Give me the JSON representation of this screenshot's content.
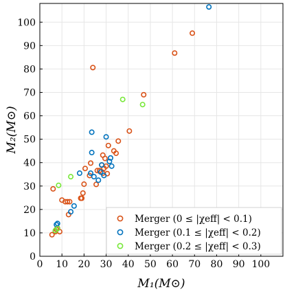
{
  "chart_data": {
    "type": "scatter",
    "xlabel": "M₁(M⊙)",
    "ylabel": "M₂(M⊙)",
    "xlim": [
      0,
      110
    ],
    "ylim": [
      0,
      108
    ],
    "x_ticks": [
      0,
      10,
      20,
      30,
      40,
      50,
      60,
      70,
      80,
      90,
      100
    ],
    "y_ticks": [
      0,
      10,
      20,
      30,
      40,
      50,
      60,
      70,
      80,
      90,
      100
    ],
    "grid": true,
    "legend_position": "bottom-right",
    "series": [
      {
        "name": "Merger (0 ≤ |χeff| < 0.1)",
        "color": "#d95319",
        "points": [
          [
            5.5,
            9.2
          ],
          [
            6.0,
            28.8
          ],
          [
            7.0,
            10.5
          ],
          [
            7.5,
            11.5
          ],
          [
            8.0,
            12.0
          ],
          [
            9.0,
            10.5
          ],
          [
            10.0,
            24.0
          ],
          [
            11.5,
            23.3
          ],
          [
            12.5,
            23.3
          ],
          [
            13.5,
            23.3
          ],
          [
            13.0,
            17.8
          ],
          [
            18.5,
            24.8
          ],
          [
            19.0,
            24.8
          ],
          [
            19.5,
            27.0
          ],
          [
            20.0,
            30.8
          ],
          [
            20.5,
            37.5
          ],
          [
            22.5,
            34.5
          ],
          [
            23.0,
            39.8
          ],
          [
            24.0,
            80.6
          ],
          [
            25.5,
            30.7
          ],
          [
            26.0,
            36.6
          ],
          [
            27.0,
            36.6
          ],
          [
            28.0,
            39.0
          ],
          [
            28.5,
            43.2
          ],
          [
            28.5,
            35.5
          ],
          [
            29.0,
            37.6
          ],
          [
            29.5,
            41.8
          ],
          [
            30.0,
            38.5
          ],
          [
            30.5,
            35.3
          ],
          [
            31.0,
            47.3
          ],
          [
            33.5,
            45.0
          ],
          [
            34.5,
            44.0
          ],
          [
            35.5,
            49.2
          ],
          [
            40.5,
            53.5
          ],
          [
            47.0,
            69.0
          ],
          [
            61.0,
            86.8
          ],
          [
            69.0,
            95.3
          ]
        ]
      },
      {
        "name": "Merger (0.1 ≤ |χeff| < 0.2)",
        "color": "#0072bd",
        "points": [
          [
            7.5,
            13.5
          ],
          [
            8.0,
            14.0
          ],
          [
            14.0,
            19.0
          ],
          [
            15.5,
            21.5
          ],
          [
            18.0,
            35.5
          ],
          [
            23.0,
            35.5
          ],
          [
            23.5,
            44.3
          ],
          [
            23.5,
            53.0
          ],
          [
            24.5,
            34.0
          ],
          [
            26.5,
            32.5
          ],
          [
            27.5,
            36.0
          ],
          [
            28.0,
            39.0
          ],
          [
            29.0,
            34.5
          ],
          [
            30.0,
            51.0
          ],
          [
            31.5,
            40.5
          ],
          [
            32.0,
            42.0
          ],
          [
            32.5,
            38.5
          ],
          [
            76.5,
            106.5
          ]
        ]
      },
      {
        "name": "Merger (0.2 ≤ |χeff| < 0.3)",
        "color": "#77e838",
        "points": [
          [
            7.0,
            11.0
          ],
          [
            8.0,
            11.8
          ],
          [
            8.5,
            30.3
          ],
          [
            14.0,
            34.0
          ],
          [
            37.5,
            67.0
          ],
          [
            46.5,
            64.8
          ]
        ]
      }
    ]
  }
}
